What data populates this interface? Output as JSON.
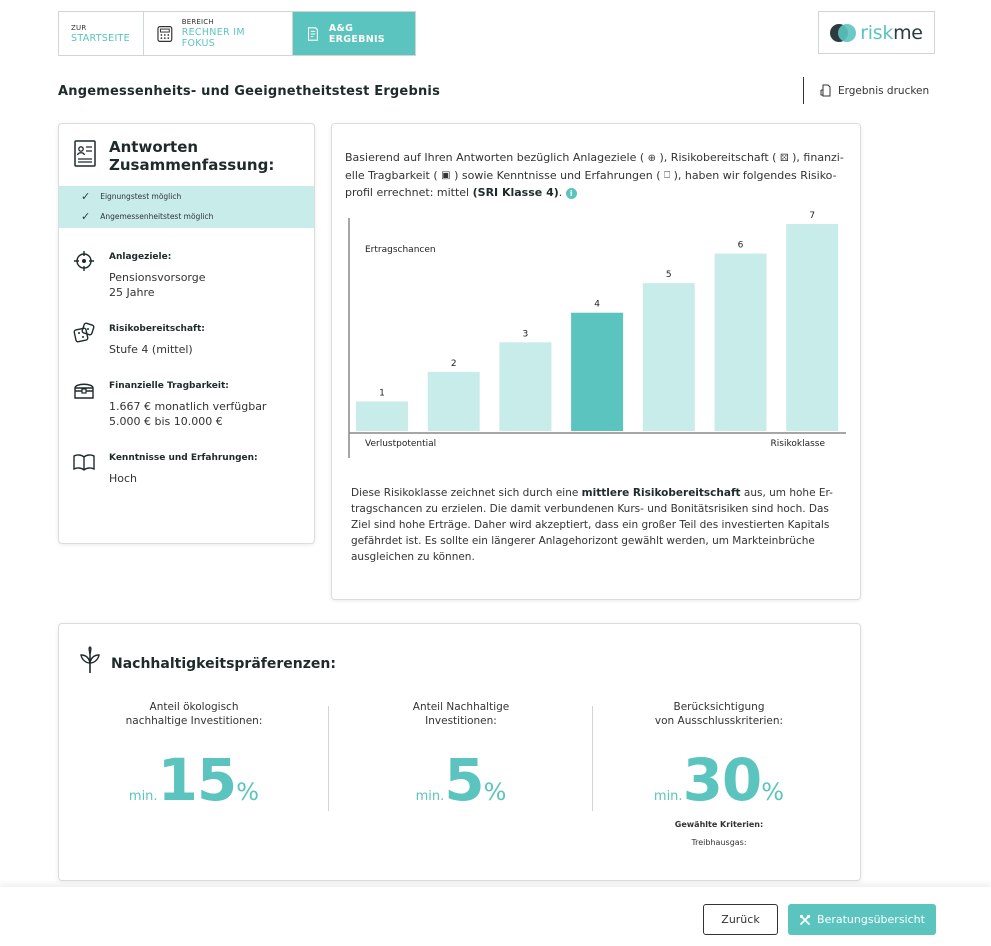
{
  "nav": {
    "tabs": [
      {
        "small": "ZUR",
        "big": "STARTSEITE"
      },
      {
        "small": "BEREICH",
        "big": "RECHNER IM FOKUS",
        "icon": "calculator-icon"
      },
      {
        "small": "",
        "big": "A&G ERGEBNIS",
        "icon": "document-icon"
      }
    ],
    "logo": {
      "left": "risk",
      "right": "me"
    }
  },
  "page": {
    "title": "Angemessenheits- und Geeignetheitstest Ergebnis",
    "print_label": "Ergebnis drucken"
  },
  "summary": {
    "title_line1": "Antworten",
    "title_line2": "Zusammenfassung:",
    "checks": [
      "Eignungstest möglich",
      "Angemessenheitstest möglich"
    ],
    "sections": [
      {
        "label": "Anlageziele:",
        "values": [
          "Pensionsvorsorge",
          "25 Jahre"
        ],
        "icon": "target-icon"
      },
      {
        "label": "Risikobereitschaft:",
        "values": [
          "Stufe 4 (mittel)"
        ],
        "icon": "dice-icon"
      },
      {
        "label": "Finanzielle Tragbarkeit:",
        "values": [
          "1.667 € monatlich verfügbar",
          "5.000 € bis 10.000 €"
        ],
        "icon": "treasure-chest-icon"
      },
      {
        "label": "Kenntnisse und Erfahrungen:",
        "values": [
          "Hoch"
        ],
        "icon": "book-icon"
      }
    ]
  },
  "result": {
    "intro_1": "Basierend auf Ihren Antworten bezüglich Anlageziele (",
    "intro_2": "), Risikobereitschaft (",
    "intro_3": "), finanzi-elle Tragbarkeit (",
    "intro_4": ") sowie Kenntnisse und Erfahrungen (",
    "intro_5": "), haben wir folgendes Risiko-profil errechnet: mittel ",
    "intro_bold": "(SRI Klasse 4)",
    "intro_end": ".",
    "info": "i",
    "desc_1": "Diese Risikoklasse zeichnet sich durch eine ",
    "desc_bold": "mittlere Risikobereitschaft",
    "desc_2": " aus, um hohe Er-tragschancen zu erzielen. Die damit verbundenen Kurs- und Bonitätsrisiken sind hoch. Das Ziel sind hohe Erträge. Daher wird akzeptiert, dass ein großer Teil des investierten Kapitals gefährdet ist. Es sollte ein längerer Anlagehorizont gewählt werden, um Markteinbrüche ausgleichen zu können."
  },
  "chart_data": {
    "type": "bar",
    "categories": [
      "1",
      "2",
      "3",
      "4",
      "5",
      "6",
      "7"
    ],
    "values": [
      1,
      2,
      3,
      4,
      5,
      6,
      7
    ],
    "highlight_index": 3,
    "ylabel": "Ertragschancen",
    "xlabel_left": "Verlustpotential",
    "xlabel_right": "Risikoklasse",
    "colors": {
      "bar": "#c7ecea",
      "highlight": "#5bc4bf"
    }
  },
  "sustainability": {
    "title": "Nachhaltigkeitspräferenzen:",
    "columns": [
      {
        "cap1": "Anteil ökologisch",
        "cap2": "nachhaltige Investitionen:",
        "pre": "min.",
        "value": "15",
        "unit": "%"
      },
      {
        "cap1": "Anteil Nachhaltige",
        "cap2": "Investitionen:",
        "pre": "min.",
        "value": "5",
        "unit": "%"
      },
      {
        "cap1": "Berücksichtigung",
        "cap2": "von Ausschlusskriterien:",
        "pre": "min.",
        "value": "30",
        "unit": "%"
      }
    ],
    "criteria_label": "Gewählte Kriterien:",
    "criteria_item": "Treibhausgas:"
  },
  "footer": {
    "back": "Zurück",
    "next": "Beratungsübersicht"
  },
  "colors": {
    "accent": "#5bc4bf",
    "accent_light": "#c7ecea",
    "dark": "#2d3b3c"
  }
}
